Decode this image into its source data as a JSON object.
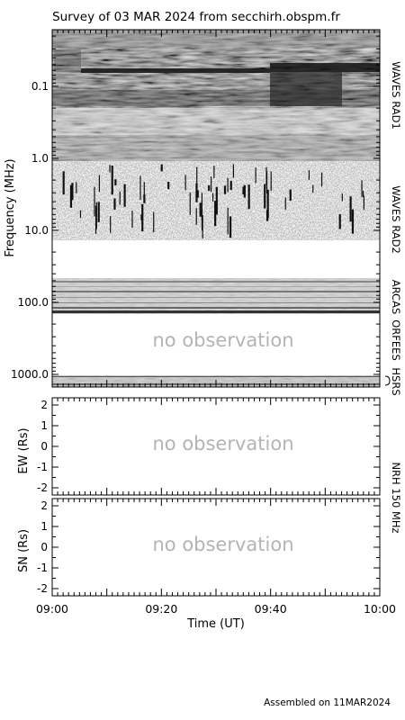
{
  "title": "Survey of 03 MAR 2024 from secchirh.obspm.fr",
  "footer": "Assembled on 11MAR2024",
  "colors": {
    "frame": "#000000",
    "no_observation_text": "#b4b4b4",
    "background": "#ffffff"
  },
  "chart_data": [
    {
      "type": "heatmap",
      "name": "dynamic-spectrum",
      "ylabel": "Frequency (MHz)",
      "yscale": "log",
      "ylim": [
        0.02,
        1500
      ],
      "y_inverted": true,
      "y_ticks": [
        {
          "value": 0.1,
          "label": "0.1"
        },
        {
          "value": 1.0,
          "label": "1.0"
        },
        {
          "value": 10.0,
          "label": "10.0"
        },
        {
          "value": 100.0,
          "label": "100.0"
        },
        {
          "value": 1000.0,
          "label": "1000.0"
        }
      ],
      "x_range": [
        "09:00",
        "10:00"
      ],
      "x_ticks": [
        "09:00",
        "09:20",
        "09:40",
        "10:00"
      ],
      "instruments": [
        {
          "label": "WAVES RAD1",
          "freq_range_mhz": [
            0.02,
            1.0
          ]
        },
        {
          "label": "WAVES RAD2",
          "freq_range_mhz": [
            1.0,
            13.8
          ]
        },
        {
          "label": "ARCAS",
          "freq_range_mhz": [
            45,
            110
          ]
        },
        {
          "label": "ORFEES",
          "freq_range_mhz": [
            140,
            1000
          ]
        },
        {
          "label": "HSRS",
          "freq_range_mhz": [
            1150,
            1400
          ]
        }
      ],
      "annotation": "no observation"
    },
    {
      "type": "scatter",
      "name": "nrh-ew",
      "ylabel": "EW (Rs)",
      "ylim": [
        -2,
        2
      ],
      "y_ticks": [
        "2",
        "1",
        "0",
        "-1",
        "-2"
      ],
      "annotation": "no observation",
      "points": []
    },
    {
      "type": "scatter",
      "name": "nrh-sn",
      "ylabel": "SN (Rs)",
      "ylim": [
        -2,
        2
      ],
      "y_ticks": [
        "2",
        "1",
        "0",
        "-1",
        "-2"
      ],
      "xlabel": "Time (UT)",
      "x_ticks": [
        "09:00",
        "09:20",
        "09:40",
        "10:00"
      ],
      "annotation": "no observation",
      "points": []
    }
  ],
  "nrh_label": "NRH 150 MHz"
}
